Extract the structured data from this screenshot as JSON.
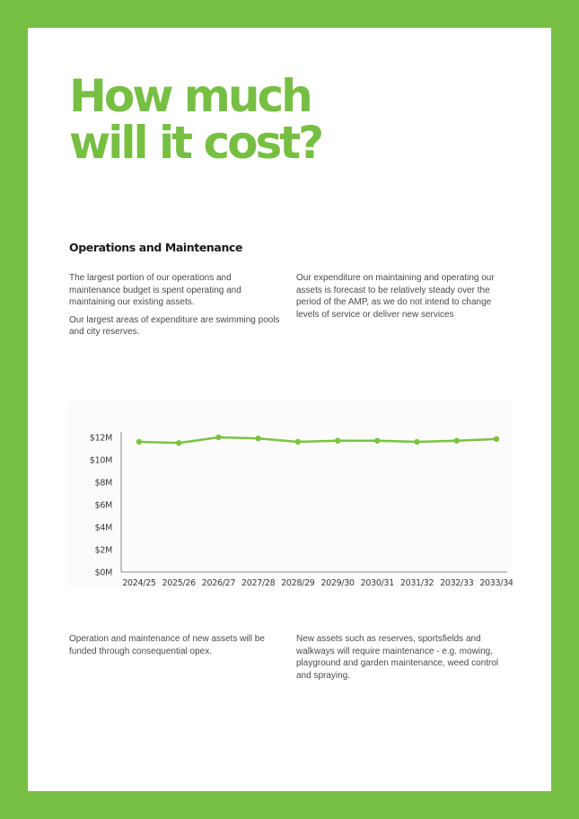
{
  "colors": {
    "brand_green": "#77bf43",
    "line": "#7dc242",
    "axis": "#888888"
  },
  "title_lines": [
    "How much",
    "will it cost?"
  ],
  "section": {
    "heading": "Operations and Maintenance",
    "col1": [
      "The largest portion of our operations and maintenance budget is spent operating and maintaining our existing assets.",
      "Our largest areas of expenditure are swimming pools and city reserves."
    ],
    "col2": [
      "Our expenditure on maintaining and operating our assets is forecast to be relatively steady over the period of the AMP, as we do not intend to change levels of service or deliver new services"
    ]
  },
  "chart_data": {
    "type": "line",
    "categories": [
      "2024/25",
      "2025/26",
      "2026/27",
      "2027/28",
      "2028/29",
      "2029/30",
      "2030/31",
      "2031/32",
      "2032/33",
      "2033/34"
    ],
    "series": [
      {
        "values": [
          11.6,
          11.5,
          12.0,
          11.9,
          11.6,
          11.7,
          11.7,
          11.6,
          11.7,
          11.85
        ]
      }
    ],
    "y_ticks": [
      "$0M",
      "$2M",
      "$4M",
      "$6M",
      "$8M",
      "$10M",
      "$12M"
    ],
    "y_tick_values": [
      0,
      2,
      4,
      6,
      8,
      10,
      12
    ],
    "ylim": [
      0,
      12
    ],
    "grid": false,
    "markers": true,
    "title": "",
    "xlabel": "",
    "ylabel": ""
  },
  "lower": {
    "col1": [
      "Operation and maintenance of new assets will be funded through consequential opex."
    ],
    "col2": [
      "New assets such as reserves, sportsfields and walkways will require maintenance - e.g. mowing, playground and garden maintenance, weed control and spraying."
    ]
  }
}
